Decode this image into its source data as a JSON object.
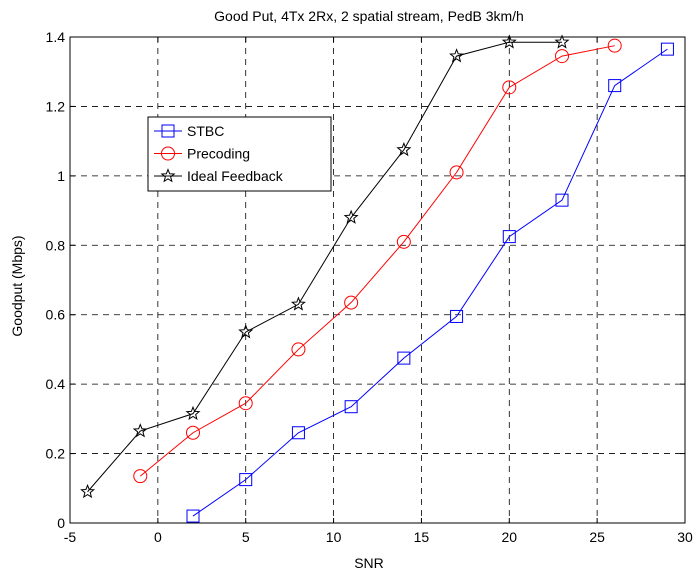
{
  "chart_data": {
    "type": "line",
    "title": "Good Put, 4Tx 2Rx, 2 spatial stream, PedB 3km/h",
    "xlabel": "SNR",
    "ylabel": "Goodput (Mbps)",
    "xlim": [
      -5,
      30
    ],
    "ylim": [
      0,
      1.4
    ],
    "xticks": [
      -5,
      0,
      5,
      10,
      15,
      20,
      25,
      30
    ],
    "yticks": [
      0,
      0.2,
      0.4,
      0.6,
      0.8,
      1,
      1.2,
      1.4
    ],
    "xtick_labels": [
      "-5",
      "0",
      "5",
      "10",
      "15",
      "20",
      "25",
      "30"
    ],
    "ytick_labels": [
      "0",
      "0.2",
      "0.4",
      "0.6",
      "0.8",
      "1",
      "1.2",
      "1.4"
    ],
    "grid": true,
    "legend_position": "upper-left",
    "series": [
      {
        "name": "STBC",
        "color": "#0000ff",
        "marker": "square",
        "x": [
          2,
          5,
          8,
          11,
          14,
          17,
          20,
          23,
          26,
          29
        ],
        "y": [
          0.02,
          0.125,
          0.26,
          0.335,
          0.475,
          0.595,
          0.825,
          0.93,
          1.26,
          1.365
        ]
      },
      {
        "name": "Precoding",
        "color": "#ff0000",
        "marker": "circle",
        "x": [
          -1,
          2,
          5,
          8,
          11,
          14,
          17,
          20,
          23,
          26
        ],
        "y": [
          0.135,
          0.26,
          0.345,
          0.5,
          0.635,
          0.81,
          1.01,
          1.255,
          1.345,
          1.375
        ]
      },
      {
        "name": "Ideal Feedback",
        "color": "#000000",
        "marker": "star",
        "x": [
          -4,
          -1,
          2,
          5,
          8,
          11,
          14,
          17,
          20,
          23
        ],
        "y": [
          0.09,
          0.265,
          0.315,
          0.55,
          0.63,
          0.88,
          1.075,
          1.345,
          1.385,
          1.385
        ]
      }
    ]
  }
}
